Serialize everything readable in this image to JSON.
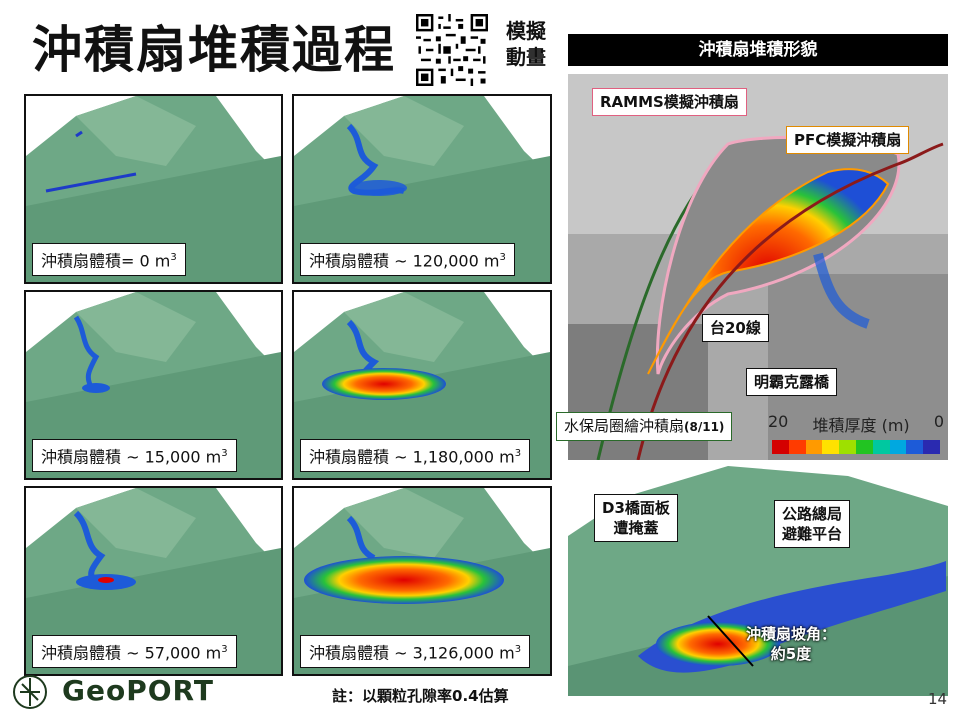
{
  "title": "沖積扇堆積過程",
  "qr_label_line1": "模擬",
  "qr_label_line2": "動畫",
  "panels": [
    {
      "volume_prefix": "沖積扇體積=",
      "volume_value": " 0 m",
      "exp": "3"
    },
    {
      "volume_prefix": "沖積扇體積",
      "volume_value": " ~ 120,000 m",
      "exp": "3"
    },
    {
      "volume_prefix": "沖積扇體積",
      "volume_value": " ~ 15,000 m",
      "exp": "3"
    },
    {
      "volume_prefix": "沖積扇體積",
      "volume_value": " ~ 1,180,000 m",
      "exp": "3"
    },
    {
      "volume_prefix": "沖積扇體積",
      "volume_value": " ~ 57,000 m",
      "exp": "3"
    },
    {
      "volume_prefix": "沖積扇體積",
      "volume_value": " ~ 3,126,000 m",
      "exp": "3"
    }
  ],
  "right_header": "沖積扇堆積形貌",
  "map_labels": {
    "ramms": "RAMMS模擬沖積扇",
    "pfc": "PFC模擬沖積扇",
    "road": "台20線",
    "bridge": "明霸克露橋",
    "swcb": "水保局圈繪沖積扇",
    "swcb_date": "(8/11)"
  },
  "scale": {
    "max": "20",
    "label": "堆積厚度 (m)",
    "min": "0"
  },
  "scale_colors": [
    "#d40000",
    "#ff3b00",
    "#ff9a00",
    "#ffe100",
    "#9ee000",
    "#22c422",
    "#00c8a0",
    "#00a8e0",
    "#1d5bd8",
    "#2a2ab0"
  ],
  "terrain_labels": {
    "d3_line1": "D3橋面板",
    "d3_line2": "遭掩蓋",
    "highway_line1": "公路總局",
    "highway_line2": "避難平台",
    "slope_line1": "沖積扇坡角：",
    "slope_line2": "約5度"
  },
  "note": "註：以顆粒孔隙率0.4估算",
  "logo_text": "GeoPORT",
  "page_number": "14"
}
